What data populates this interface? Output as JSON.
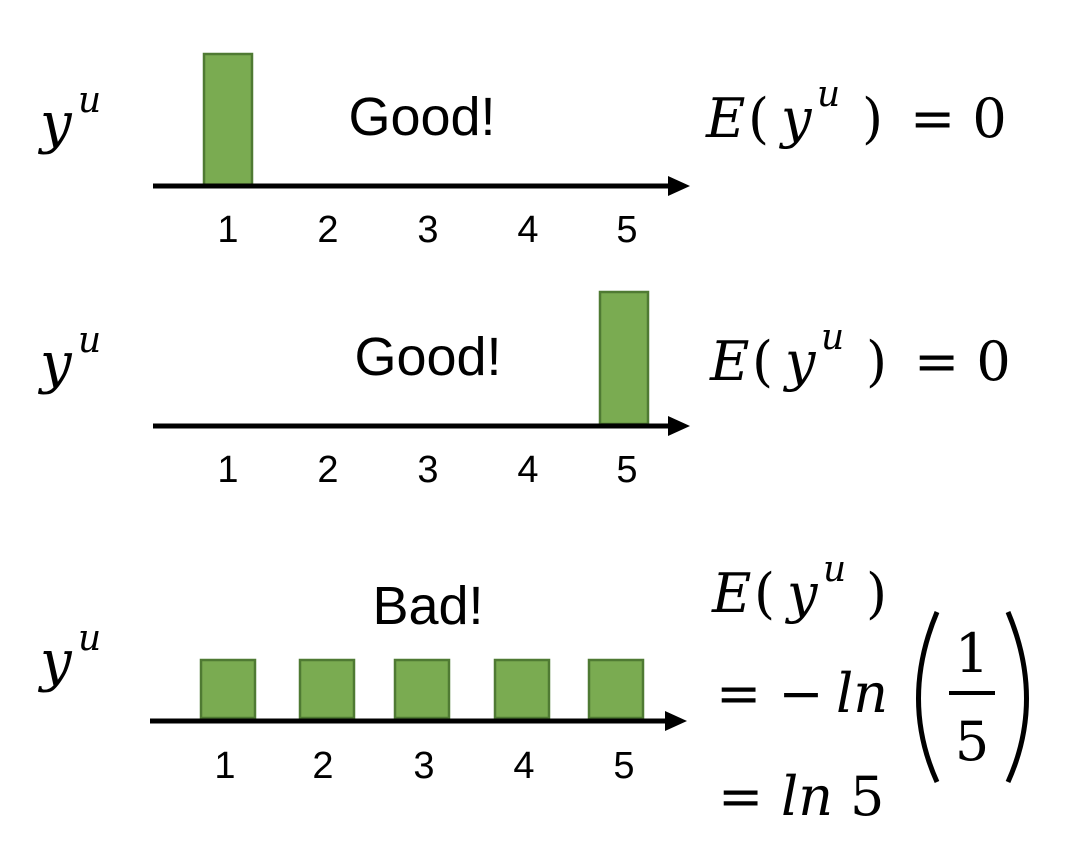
{
  "panels": [
    {
      "variable": "y",
      "superscript": "u",
      "verdict": "Good!",
      "categories": [
        "1",
        "2",
        "3",
        "4",
        "5"
      ],
      "values": [
        1,
        0,
        0,
        0,
        0
      ],
      "equation": {
        "func": "E",
        "open": "(",
        "var": "y",
        "sup": "u",
        "close": ")",
        "rhs": "= 0"
      }
    },
    {
      "variable": "y",
      "superscript": "u",
      "verdict": "Good!",
      "categories": [
        "1",
        "2",
        "3",
        "4",
        "5"
      ],
      "values": [
        0,
        0,
        0,
        0,
        1
      ],
      "equation": {
        "func": "E",
        "open": "(",
        "var": "y",
        "sup": "u",
        "close": ")",
        "rhs": "= 0"
      }
    },
    {
      "variable": "y",
      "superscript": "u",
      "verdict": "Bad!",
      "categories": [
        "1",
        "2",
        "3",
        "4",
        "5"
      ],
      "values": [
        0.2,
        0.2,
        0.2,
        0.2,
        0.2
      ],
      "equation": {
        "func": "E",
        "open": "(",
        "var": "y",
        "sup": "u",
        "close": ")",
        "line2_prefix": "= −",
        "line2_ln": "ln",
        "frac_num": "1",
        "frac_den": "5",
        "line3_prefix": "= ",
        "line3_ln": "ln",
        "line3_val": "5"
      }
    }
  ],
  "colors": {
    "bar_fill": "#7aab51",
    "bar_stroke": "#4f7a33",
    "axis": "#000000"
  }
}
